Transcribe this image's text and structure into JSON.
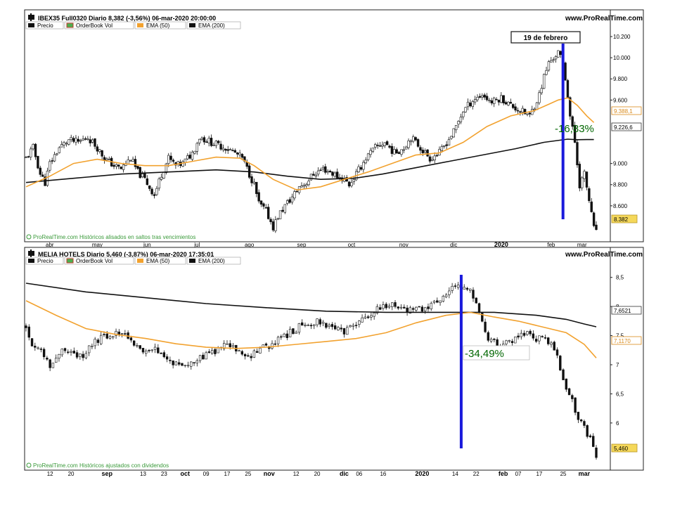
{
  "colors": {
    "ema50": "#f2a22f",
    "ema200": "#111111",
    "candle": "#111111",
    "marker": "#1a1adc",
    "last_price_bg": "#f5d85a",
    "footer_green": "#3a9a3a",
    "pct_green": "#006600"
  },
  "chart_data": [
    {
      "type": "line",
      "title": "IBEX35 Full0320 Diario 8,382 (-3,56%) 06-mar-2020 20:00:00",
      "site": "www.ProRealTime.com",
      "legend": [
        "Precio",
        "OrderBook Vol",
        "EMA (50)",
        "EMA (200)"
      ],
      "legend_icons": [
        "price-icon",
        "orderbook-icon",
        "ema50-icon",
        "ema200-icon"
      ],
      "footer": "ProRealTime.com Históricos alisados en saltos tras vencimientos",
      "callout": "19 de febrero",
      "drawdown_label": "-16,83%",
      "last_price_label": "8.382",
      "ema50_label": "9.388,1",
      "ema200_label": "9.226,6",
      "x_domain": [
        0,
        240
      ],
      "ylim": [
        8300,
        10280
      ],
      "yticks": [
        {
          "v": 10200,
          "label": "10.200"
        },
        {
          "v": 10000,
          "label": "10.000"
        },
        {
          "v": 9800,
          "label": "9.800"
        },
        {
          "v": 9600,
          "label": "9.600"
        },
        {
          "v": 9000,
          "label": "9.000"
        },
        {
          "v": 8800,
          "label": "8.800"
        },
        {
          "v": 8600,
          "label": "8.600"
        }
      ],
      "xticks": [
        {
          "x": 10,
          "label": "abr",
          "bold": false
        },
        {
          "x": 30,
          "label": "may",
          "bold": false
        },
        {
          "x": 51,
          "label": "jun",
          "bold": false
        },
        {
          "x": 72,
          "label": "jul",
          "bold": false
        },
        {
          "x": 94,
          "label": "ago",
          "bold": false
        },
        {
          "x": 116,
          "label": "sep",
          "bold": false
        },
        {
          "x": 137,
          "label": "oct",
          "bold": false
        },
        {
          "x": 159,
          "label": "nov",
          "bold": false
        },
        {
          "x": 180,
          "label": "dic",
          "bold": false
        },
        {
          "x": 200,
          "label": "2020",
          "bold": true
        },
        {
          "x": 221,
          "label": "feb",
          "bold": false
        },
        {
          "x": 234,
          "label": "mar",
          "bold": false
        }
      ],
      "marker_x": 226,
      "price_path": [
        [
          0,
          9050
        ],
        [
          3,
          9150
        ],
        [
          6,
          8900
        ],
        [
          8,
          8820
        ],
        [
          10,
          9000
        ],
        [
          14,
          9150
        ],
        [
          18,
          9220
        ],
        [
          22,
          9200
        ],
        [
          26,
          9250
        ],
        [
          30,
          9150
        ],
        [
          33,
          9050
        ],
        [
          37,
          8980
        ],
        [
          40,
          8950
        ],
        [
          44,
          9050
        ],
        [
          47,
          8920
        ],
        [
          50,
          8850
        ],
        [
          54,
          8700
        ],
        [
          57,
          8900
        ],
        [
          60,
          9050
        ],
        [
          63,
          8980
        ],
        [
          66,
          9000
        ],
        [
          70,
          9100
        ],
        [
          73,
          9250
        ],
        [
          76,
          9220
        ],
        [
          80,
          9180
        ],
        [
          84,
          9150
        ],
        [
          88,
          9100
        ],
        [
          91,
          9050
        ],
        [
          94,
          8900
        ],
        [
          96,
          8800
        ],
        [
          98,
          8620
        ],
        [
          101,
          8550
        ],
        [
          104,
          8400
        ],
        [
          106,
          8500
        ],
        [
          109,
          8600
        ],
        [
          112,
          8680
        ],
        [
          115,
          8780
        ],
        [
          118,
          8820
        ],
        [
          121,
          8900
        ],
        [
          125,
          8950
        ],
        [
          128,
          8920
        ],
        [
          131,
          8880
        ],
        [
          134,
          8850
        ],
        [
          136,
          8800
        ],
        [
          139,
          8900
        ],
        [
          143,
          9050
        ],
        [
          147,
          9150
        ],
        [
          151,
          9200
        ],
        [
          155,
          9100
        ],
        [
          159,
          9150
        ],
        [
          162,
          9250
        ],
        [
          166,
          9150
        ],
        [
          170,
          9050
        ],
        [
          174,
          9100
        ],
        [
          177,
          9200
        ],
        [
          180,
          9300
        ],
        [
          184,
          9500
        ],
        [
          188,
          9600
        ],
        [
          192,
          9650
        ],
        [
          196,
          9580
        ],
        [
          200,
          9620
        ],
        [
          204,
          9550
        ],
        [
          208,
          9500
        ],
        [
          212,
          9450
        ],
        [
          214,
          9550
        ],
        [
          216,
          9650
        ],
        [
          218,
          9820
        ],
        [
          220,
          9950
        ],
        [
          222,
          10000
        ],
        [
          224,
          10050
        ],
        [
          226,
          9950
        ],
        [
          228,
          9650
        ],
        [
          229,
          9450
        ],
        [
          231,
          9200
        ],
        [
          233,
          8800
        ],
        [
          235,
          8900
        ],
        [
          237,
          8650
        ],
        [
          239,
          8382
        ]
      ],
      "ema50": [
        [
          0,
          8780
        ],
        [
          10,
          8880
        ],
        [
          20,
          9000
        ],
        [
          30,
          9040
        ],
        [
          40,
          9000
        ],
        [
          50,
          8980
        ],
        [
          60,
          8980
        ],
        [
          70,
          9020
        ],
        [
          80,
          9060
        ],
        [
          90,
          9050
        ],
        [
          96,
          8980
        ],
        [
          104,
          8850
        ],
        [
          114,
          8750
        ],
        [
          124,
          8780
        ],
        [
          134,
          8850
        ],
        [
          144,
          8920
        ],
        [
          154,
          9000
        ],
        [
          164,
          9080
        ],
        [
          174,
          9100
        ],
        [
          184,
          9200
        ],
        [
          194,
          9350
        ],
        [
          204,
          9450
        ],
        [
          214,
          9500
        ],
        [
          220,
          9560
        ],
        [
          224,
          9600
        ],
        [
          228,
          9620
        ],
        [
          232,
          9550
        ],
        [
          236,
          9450
        ],
        [
          239,
          9388
        ]
      ],
      "ema200": [
        [
          0,
          8820
        ],
        [
          20,
          8860
        ],
        [
          40,
          8900
        ],
        [
          60,
          8920
        ],
        [
          80,
          8940
        ],
        [
          96,
          8920
        ],
        [
          110,
          8880
        ],
        [
          124,
          8850
        ],
        [
          138,
          8860
        ],
        [
          150,
          8900
        ],
        [
          164,
          8960
        ],
        [
          178,
          9020
        ],
        [
          192,
          9080
        ],
        [
          206,
          9140
        ],
        [
          218,
          9200
        ],
        [
          228,
          9230
        ],
        [
          232,
          9225
        ],
        [
          236,
          9226
        ],
        [
          239,
          9226
        ]
      ]
    },
    {
      "type": "line",
      "title": "MELIA HOTELS Diario 5,460 (-3,87%) 06-mar-2020 17:35:01",
      "site": "www.ProRealTime.com",
      "legend": [
        "Precio",
        "OrderBook Vol",
        "EMA (50)",
        "EMA (200)"
      ],
      "legend_icons": [
        "price-icon",
        "orderbook-icon",
        "ema50-icon",
        "ema200-icon"
      ],
      "footer": "ProRealTime.com Históricos ajustados con dividendos",
      "drawdown_label": "-34,49%",
      "last_price_label": "5,460",
      "ema50_label": "7,1170",
      "ema200_label": "7,6521",
      "x_domain": [
        0,
        190
      ],
      "ylim": [
        5.25,
        8.75
      ],
      "yticks": [
        {
          "v": 8.5,
          "label": "8,5"
        },
        {
          "v": 8,
          "label": "8"
        },
        {
          "v": 7.5,
          "label": "7,5"
        },
        {
          "v": 7,
          "label": "7"
        },
        {
          "v": 6.5,
          "label": "6,5"
        },
        {
          "v": 6,
          "label": "6"
        }
      ],
      "xticks": [
        {
          "x": 8,
          "label": "12",
          "bold": false
        },
        {
          "x": 15,
          "label": "20",
          "bold": false
        },
        {
          "x": 27,
          "label": "sep",
          "bold": true
        },
        {
          "x": 39,
          "label": "13",
          "bold": false
        },
        {
          "x": 46,
          "label": "23",
          "bold": false
        },
        {
          "x": 53,
          "label": "oct",
          "bold": true
        },
        {
          "x": 60,
          "label": "09",
          "bold": false
        },
        {
          "x": 67,
          "label": "17",
          "bold": false
        },
        {
          "x": 74,
          "label": "25",
          "bold": false
        },
        {
          "x": 81,
          "label": "nov",
          "bold": true
        },
        {
          "x": 90,
          "label": "12",
          "bold": false
        },
        {
          "x": 97,
          "label": "20",
          "bold": false
        },
        {
          "x": 106,
          "label": "dic",
          "bold": true
        },
        {
          "x": 111,
          "label": "06",
          "bold": false
        },
        {
          "x": 119,
          "label": "16",
          "bold": false
        },
        {
          "x": 132,
          "label": "2020",
          "bold": true
        },
        {
          "x": 143,
          "label": "14",
          "bold": false
        },
        {
          "x": 150,
          "label": "22",
          "bold": false
        },
        {
          "x": 159,
          "label": "feb",
          "bold": true
        },
        {
          "x": 164,
          "label": "07",
          "bold": false
        },
        {
          "x": 171,
          "label": "17",
          "bold": false
        },
        {
          "x": 179,
          "label": "25",
          "bold": false
        },
        {
          "x": 186,
          "label": "mar",
          "bold": true
        }
      ],
      "marker_x": 145,
      "price_path": [
        [
          0,
          7.65
        ],
        [
          2,
          7.35
        ],
        [
          4,
          7.3
        ],
        [
          6,
          7.15
        ],
        [
          8,
          7.0
        ],
        [
          10,
          7.1
        ],
        [
          13,
          7.3
        ],
        [
          16,
          7.2
        ],
        [
          19,
          7.1
        ],
        [
          22,
          7.35
        ],
        [
          25,
          7.45
        ],
        [
          28,
          7.5
        ],
        [
          31,
          7.55
        ],
        [
          34,
          7.5
        ],
        [
          37,
          7.3
        ],
        [
          40,
          7.2
        ],
        [
          43,
          7.25
        ],
        [
          46,
          7.1
        ],
        [
          49,
          7.05
        ],
        [
          52,
          7.0
        ],
        [
          55,
          7.05
        ],
        [
          58,
          7.1
        ],
        [
          61,
          7.2
        ],
        [
          64,
          7.25
        ],
        [
          67,
          7.35
        ],
        [
          70,
          7.25
        ],
        [
          73,
          7.1
        ],
        [
          76,
          7.2
        ],
        [
          79,
          7.3
        ],
        [
          82,
          7.35
        ],
        [
          85,
          7.45
        ],
        [
          88,
          7.55
        ],
        [
          91,
          7.65
        ],
        [
          94,
          7.7
        ],
        [
          97,
          7.75
        ],
        [
          100,
          7.7
        ],
        [
          103,
          7.6
        ],
        [
          106,
          7.55
        ],
        [
          109,
          7.65
        ],
        [
          112,
          7.8
        ],
        [
          115,
          7.85
        ],
        [
          118,
          8.0
        ],
        [
          121,
          8.05
        ],
        [
          124,
          8.0
        ],
        [
          127,
          7.95
        ],
        [
          130,
          8.0
        ],
        [
          133,
          7.95
        ],
        [
          136,
          8.05
        ],
        [
          139,
          8.2
        ],
        [
          142,
          8.3
        ],
        [
          145,
          8.35
        ],
        [
          148,
          8.25
        ],
        [
          150,
          8.05
        ],
        [
          152,
          7.7
        ],
        [
          154,
          7.45
        ],
        [
          156,
          7.4
        ],
        [
          158,
          7.3
        ],
        [
          160,
          7.45
        ],
        [
          162,
          7.35
        ],
        [
          164,
          7.5
        ],
        [
          166,
          7.55
        ],
        [
          168,
          7.5
        ],
        [
          170,
          7.45
        ],
        [
          172,
          7.5
        ],
        [
          174,
          7.4
        ],
        [
          176,
          7.3
        ],
        [
          178,
          6.95
        ],
        [
          180,
          6.6
        ],
        [
          182,
          6.4
        ],
        [
          184,
          6.0
        ],
        [
          186,
          5.95
        ],
        [
          187,
          5.75
        ],
        [
          188,
          5.7
        ],
        [
          190,
          5.46
        ]
      ],
      "ema50": [
        [
          0,
          8.1
        ],
        [
          10,
          7.85
        ],
        [
          20,
          7.62
        ],
        [
          30,
          7.52
        ],
        [
          40,
          7.45
        ],
        [
          50,
          7.36
        ],
        [
          60,
          7.3
        ],
        [
          70,
          7.28
        ],
        [
          80,
          7.3
        ],
        [
          90,
          7.35
        ],
        [
          100,
          7.4
        ],
        [
          110,
          7.45
        ],
        [
          120,
          7.55
        ],
        [
          130,
          7.72
        ],
        [
          140,
          7.85
        ],
        [
          148,
          7.9
        ],
        [
          156,
          7.82
        ],
        [
          164,
          7.75
        ],
        [
          172,
          7.65
        ],
        [
          180,
          7.55
        ],
        [
          186,
          7.35
        ],
        [
          190,
          7.117
        ]
      ],
      "ema200": [
        [
          0,
          8.4
        ],
        [
          20,
          8.25
        ],
        [
          40,
          8.15
        ],
        [
          60,
          8.05
        ],
        [
          80,
          7.98
        ],
        [
          100,
          7.92
        ],
        [
          120,
          7.9
        ],
        [
          140,
          7.9
        ],
        [
          156,
          7.9
        ],
        [
          170,
          7.85
        ],
        [
          180,
          7.78
        ],
        [
          186,
          7.7
        ],
        [
          190,
          7.652
        ]
      ]
    }
  ]
}
